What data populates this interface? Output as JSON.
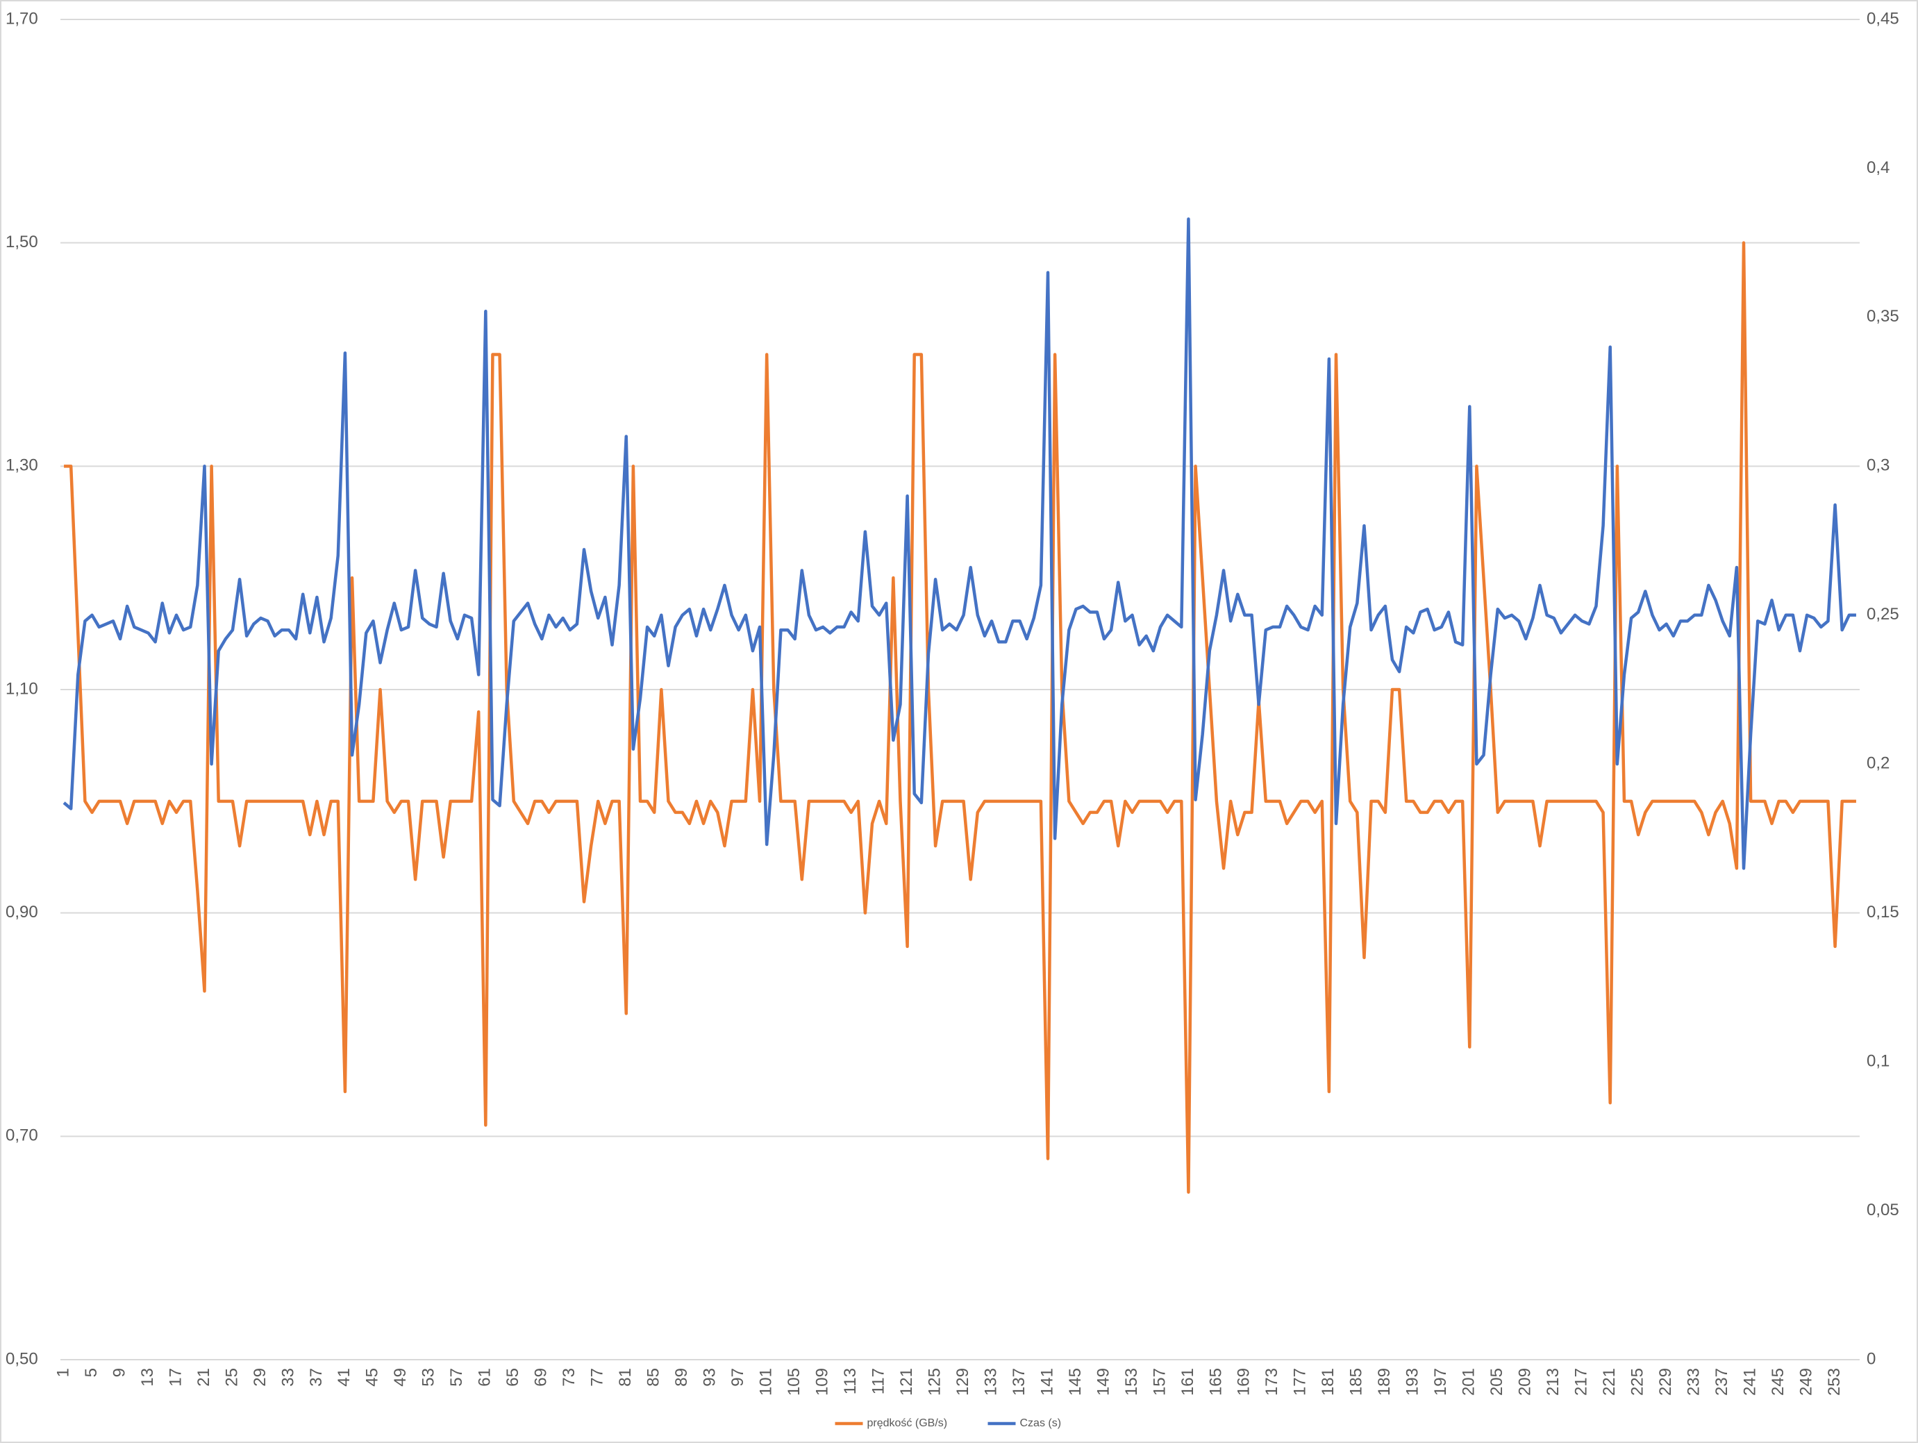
{
  "chart_data": {
    "type": "line",
    "categories": [
      "1",
      null,
      null,
      null,
      "5",
      null,
      null,
      null,
      "9",
      null,
      null,
      null,
      "13",
      null,
      null,
      null,
      "17",
      null,
      null,
      null,
      "21",
      null,
      null,
      null,
      "25",
      null,
      null,
      null,
      "29",
      null,
      null,
      null,
      "33",
      null,
      null,
      null,
      "37",
      null,
      null,
      null,
      "41",
      null,
      null,
      null,
      "45",
      null,
      null,
      null,
      "49",
      null,
      null,
      null,
      "53",
      null,
      null,
      null,
      "57",
      null,
      null,
      null,
      "61",
      null,
      null,
      null,
      "65",
      null,
      null,
      null,
      "69",
      null,
      null,
      null,
      "73",
      null,
      null,
      null,
      "77",
      null,
      null,
      null,
      "81",
      null,
      null,
      null,
      "85",
      null,
      null,
      null,
      "89",
      null,
      null,
      null,
      "93",
      null,
      null,
      null,
      "97",
      null,
      null,
      null,
      "101",
      null,
      null,
      null,
      "105",
      null,
      null,
      null,
      "109",
      null,
      null,
      null,
      "113",
      null,
      null,
      null,
      "117",
      null,
      null,
      null,
      "121",
      null,
      null,
      null,
      "125",
      null,
      null,
      null,
      "129",
      null,
      null,
      null,
      "133",
      null,
      null,
      null,
      "137",
      null,
      null,
      null,
      "141",
      null,
      null,
      null,
      "145",
      null,
      null,
      null,
      "149",
      null,
      null,
      null,
      "153",
      null,
      null,
      null,
      "157",
      null,
      null,
      null,
      "161",
      null,
      null,
      null,
      "165",
      null,
      null,
      null,
      "169",
      null,
      null,
      null,
      "173",
      null,
      null,
      null,
      "177",
      null,
      null,
      null,
      "181",
      null,
      null,
      null,
      "185",
      null,
      null,
      null,
      "189",
      null,
      null,
      null,
      "193",
      null,
      null,
      null,
      "197",
      null,
      null,
      null,
      "201",
      null,
      null,
      null,
      "205",
      null,
      null,
      null,
      "209",
      null,
      null,
      null,
      "213",
      null,
      null,
      null,
      "217",
      null,
      null,
      null,
      "221",
      null,
      null,
      null,
      "225",
      null,
      null,
      null,
      "229",
      null,
      null,
      null,
      "233",
      null,
      null,
      null,
      "237",
      null,
      null,
      null,
      "241",
      null,
      null,
      null,
      "245",
      null,
      null,
      null,
      "249",
      null,
      null,
      null,
      "253",
      null,
      null,
      null
    ],
    "series": [
      {
        "name": "prędkość (GB/s)",
        "color": "#ed7d31",
        "axis": "y",
        "values": [
          1.3,
          1.3,
          1.15,
          1.0,
          0.99,
          1.0,
          1.0,
          1.0,
          1.0,
          0.98,
          1.0,
          1.0,
          1.0,
          1.0,
          0.98,
          1.0,
          0.99,
          1.0,
          1.0,
          0.92,
          0.83,
          1.3,
          1.0,
          1.0,
          1.0,
          0.96,
          1.0,
          1.0,
          1.0,
          1.0,
          1.0,
          1.0,
          1.0,
          1.0,
          1.0,
          0.97,
          1.0,
          0.97,
          1.0,
          1.0,
          0.74,
          1.2,
          1.0,
          1.0,
          1.0,
          1.1,
          1.0,
          0.99,
          1.0,
          1.0,
          0.93,
          1.0,
          1.0,
          1.0,
          0.95,
          1.0,
          1.0,
          1.0,
          1.0,
          1.08,
          0.71,
          1.4,
          1.4,
          1.1,
          1.0,
          0.99,
          0.98,
          1.0,
          1.0,
          0.99,
          1.0,
          1.0,
          1.0,
          1.0,
          0.91,
          0.96,
          1.0,
          0.98,
          1.0,
          1.0,
          0.81,
          1.3,
          1.0,
          1.0,
          0.99,
          1.1,
          1.0,
          0.99,
          0.99,
          0.98,
          1.0,
          0.98,
          1.0,
          0.99,
          0.96,
          1.0,
          1.0,
          1.0,
          1.1,
          1.0,
          1.4,
          1.1,
          1.0,
          1.0,
          1.0,
          0.93,
          1.0,
          1.0,
          1.0,
          1.0,
          1.0,
          1.0,
          0.99,
          1.0,
          0.9,
          0.98,
          1.0,
          0.98,
          1.2,
          1.0,
          0.87,
          1.4,
          1.4,
          1.1,
          0.96,
          1.0,
          1.0,
          1.0,
          1.0,
          0.93,
          0.99,
          1.0,
          1.0,
          1.0,
          1.0,
          1.0,
          1.0,
          1.0,
          1.0,
          1.0,
          0.68,
          1.4,
          1.1,
          1.0,
          0.99,
          0.98,
          0.99,
          0.99,
          1.0,
          1.0,
          0.96,
          1.0,
          0.99,
          1.0,
          1.0,
          1.0,
          1.0,
          0.99,
          1.0,
          1.0,
          0.65,
          1.3,
          1.2,
          1.1,
          1.0,
          0.94,
          1.0,
          0.97,
          0.99,
          0.99,
          1.09,
          1.0,
          1.0,
          1.0,
          0.98,
          0.99,
          1.0,
          1.0,
          0.99,
          1.0,
          0.74,
          1.4,
          1.1,
          1.0,
          0.99,
          0.86,
          1.0,
          1.0,
          0.99,
          1.1,
          1.1,
          1.0,
          1.0,
          0.99,
          0.99,
          1.0,
          1.0,
          0.99,
          1.0,
          1.0,
          0.78,
          1.3,
          1.2,
          1.1,
          0.99,
          1.0,
          1.0,
          1.0,
          1.0,
          1.0,
          0.96,
          1.0,
          1.0,
          1.0,
          1.0,
          1.0,
          1.0,
          1.0,
          1.0,
          0.99,
          0.73,
          1.3,
          1.0,
          1.0,
          0.97,
          0.99,
          1.0,
          1.0,
          1.0,
          1.0,
          1.0,
          1.0,
          1.0,
          0.99,
          0.97,
          0.99,
          1.0,
          0.98,
          0.94,
          1.5,
          1.0,
          1.0,
          1.0,
          0.98,
          1.0,
          1.0,
          0.99,
          1.0,
          1.0,
          1.0,
          1.0,
          1.0,
          0.87,
          1.0,
          1.0,
          1.0
        ]
      },
      {
        "name": "Czas (s)",
        "color": "#4472c4",
        "axis": "y2",
        "values": [
          0.187,
          0.185,
          0.23,
          0.248,
          0.25,
          0.246,
          0.247,
          0.248,
          0.242,
          0.253,
          0.246,
          0.245,
          0.244,
          0.241,
          0.254,
          0.244,
          0.25,
          0.245,
          0.246,
          0.26,
          0.3,
          0.2,
          0.238,
          0.242,
          0.245,
          0.262,
          0.243,
          0.247,
          0.249,
          0.248,
          0.243,
          0.245,
          0.245,
          0.242,
          0.257,
          0.244,
          0.256,
          0.241,
          0.249,
          0.27,
          0.338,
          0.203,
          0.22,
          0.244,
          0.248,
          0.234,
          0.245,
          0.254,
          0.245,
          0.246,
          0.265,
          0.249,
          0.247,
          0.246,
          0.264,
          0.248,
          0.242,
          0.25,
          0.249,
          0.23,
          0.352,
          0.188,
          0.186,
          0.22,
          0.248,
          0.251,
          0.254,
          0.247,
          0.242,
          0.25,
          0.246,
          0.249,
          0.245,
          0.247,
          0.272,
          0.258,
          0.249,
          0.256,
          0.24,
          0.26,
          0.31,
          0.205,
          0.222,
          0.246,
          0.243,
          0.25,
          0.233,
          0.246,
          0.25,
          0.252,
          0.243,
          0.252,
          0.245,
          0.252,
          0.26,
          0.25,
          0.245,
          0.25,
          0.238,
          0.246,
          0.173,
          0.203,
          0.245,
          0.245,
          0.242,
          0.265,
          0.25,
          0.245,
          0.246,
          0.244,
          0.246,
          0.246,
          0.251,
          0.248,
          0.278,
          0.253,
          0.25,
          0.254,
          0.208,
          0.22,
          0.29,
          0.19,
          0.187,
          0.237,
          0.262,
          0.245,
          0.247,
          0.245,
          0.25,
          0.266,
          0.25,
          0.243,
          0.248,
          0.241,
          0.241,
          0.248,
          0.248,
          0.242,
          0.249,
          0.26,
          0.365,
          0.175,
          0.22,
          0.245,
          0.252,
          0.253,
          0.251,
          0.251,
          0.242,
          0.245,
          0.261,
          0.248,
          0.25,
          0.24,
          0.243,
          0.238,
          0.246,
          0.25,
          0.248,
          0.246,
          0.383,
          0.188,
          0.21,
          0.238,
          0.25,
          0.265,
          0.248,
          0.257,
          0.25,
          0.25,
          0.22,
          0.245,
          0.246,
          0.246,
          0.253,
          0.25,
          0.246,
          0.245,
          0.253,
          0.25,
          0.336,
          0.18,
          0.22,
          0.246,
          0.254,
          0.28,
          0.245,
          0.25,
          0.253,
          0.235,
          0.231,
          0.246,
          0.244,
          0.251,
          0.252,
          0.245,
          0.246,
          0.251,
          0.241,
          0.24,
          0.32,
          0.2,
          0.203,
          0.23,
          0.252,
          0.249,
          0.25,
          0.248,
          0.242,
          0.249,
          0.26,
          0.25,
          0.249,
          0.244,
          0.247,
          0.25,
          0.248,
          0.247,
          0.253,
          0.28,
          0.34,
          0.2,
          0.23,
          0.249,
          0.251,
          0.258,
          0.25,
          0.245,
          0.247,
          0.243,
          0.248,
          0.248,
          0.25,
          0.25,
          0.26,
          0.255,
          0.248,
          0.243,
          0.266,
          0.165,
          0.21,
          0.248,
          0.247,
          0.255,
          0.245,
          0.25,
          0.25,
          0.238,
          0.25,
          0.249,
          0.246,
          0.248,
          0.287,
          0.245,
          0.25,
          0.25
        ]
      }
    ],
    "ylim": [
      0.5,
      1.7
    ],
    "yticks": [
      {
        "value": 0.5,
        "label": "0,50"
      },
      {
        "value": 0.7,
        "label": "0,70"
      },
      {
        "value": 0.9,
        "label": "0,90"
      },
      {
        "value": 1.1,
        "label": "1,10"
      },
      {
        "value": 1.3,
        "label": "1,30"
      },
      {
        "value": 1.5,
        "label": "1,50"
      },
      {
        "value": 1.7,
        "label": "1,70"
      }
    ],
    "y2lim": [
      0,
      0.45
    ],
    "y2ticks": [
      0,
      {
        "value": 0.05,
        "label": "0,05"
      },
      {
        "value": 0.1,
        "label": "0,1"
      },
      {
        "value": 0.15,
        "label": "0,15"
      },
      {
        "value": 0.2,
        "label": "0,2"
      },
      {
        "value": 0.25,
        "label": "0,25"
      },
      {
        "value": 0.3,
        "label": "0,3"
      },
      {
        "value": 0.35,
        "label": "0,35"
      },
      {
        "value": 0.4,
        "label": "0,4"
      },
      {
        "value": 0.45,
        "label": "0,45"
      }
    ],
    "grid": true,
    "legend": "bottom"
  }
}
